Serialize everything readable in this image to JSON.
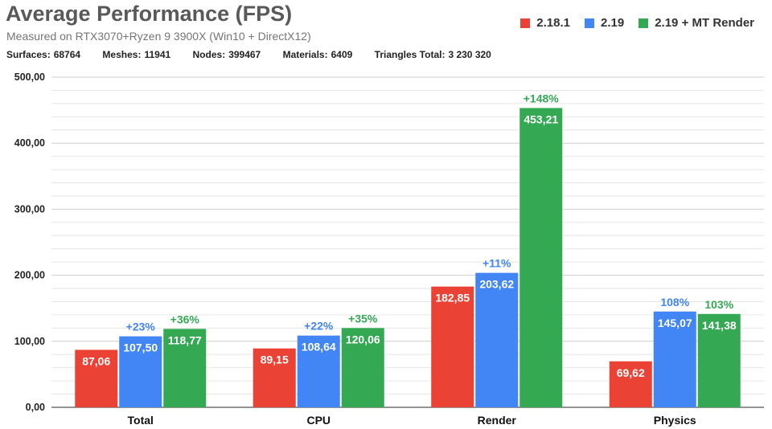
{
  "header": {
    "title": "Average Performance (FPS)",
    "subtitle": "Measured on RTX3070+Ryzen 9 3900X (Win10 + DirectX12)",
    "stats": [
      {
        "label": "Surfaces:",
        "value": "68764"
      },
      {
        "label": "Meshes:",
        "value": "11941"
      },
      {
        "label": "Nodes:",
        "value": "399467"
      },
      {
        "label": "Materials:",
        "value": "6409"
      },
      {
        "label": "Triangles Total:",
        "value": "3 230 320"
      }
    ]
  },
  "colors": {
    "red": "#ea4335",
    "blue": "#4285f4",
    "green": "#34a853"
  },
  "chart_data": {
    "type": "bar",
    "title": "Average Performance (FPS)",
    "categories": [
      "Total",
      "CPU",
      "Render",
      "Physics"
    ],
    "ylim": [
      0,
      500
    ],
    "yticks": [
      "0,00",
      "100,00",
      "200,00",
      "300,00",
      "400,00",
      "500,00"
    ],
    "legend_position": "top-right",
    "series": [
      {
        "name": "2.18.1",
        "color": "#ea4335",
        "values": [
          87.06,
          89.15,
          182.85,
          69.62
        ],
        "labels": [
          "87,06",
          "89,15",
          "182,85",
          "69,62"
        ],
        "annotations": [
          "",
          "",
          "",
          ""
        ]
      },
      {
        "name": "2.19",
        "color": "#4285f4",
        "values": [
          107.5,
          108.64,
          203.62,
          145.07
        ],
        "labels": [
          "107,50",
          "108,64",
          "203,62",
          "145,07"
        ],
        "annotations": [
          "+23%",
          "+22%",
          "+11%",
          "108%"
        ]
      },
      {
        "name": "2.19 + MT Render",
        "color": "#34a853",
        "values": [
          118.77,
          120.06,
          453.21,
          141.38
        ],
        "labels": [
          "118,77",
          "120,06",
          "453,21",
          "141,38"
        ],
        "annotations": [
          "+36%",
          "+35%",
          "+148%",
          "103%"
        ]
      }
    ]
  }
}
